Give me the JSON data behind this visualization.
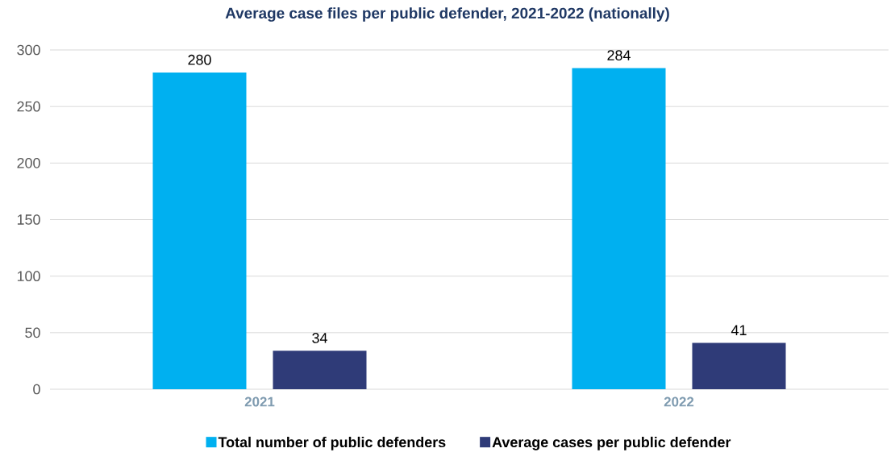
{
  "chart_data": {
    "type": "bar",
    "title": "Average case files per public defender, 2021-2022 (nationally)",
    "categories": [
      "2021",
      "2022"
    ],
    "series": [
      {
        "name": "Total number of public defenders",
        "color": "#00b0f0",
        "values": [
          280,
          284
        ]
      },
      {
        "name": "Average cases per public defender",
        "color": "#2f3b78",
        "values": [
          34,
          41
        ]
      }
    ],
    "ylim": [
      0,
      300
    ],
    "yticks": [
      0,
      50,
      100,
      150,
      200,
      250,
      300
    ],
    "grid": "y",
    "legend": "bottom",
    "data_labels": true
  }
}
